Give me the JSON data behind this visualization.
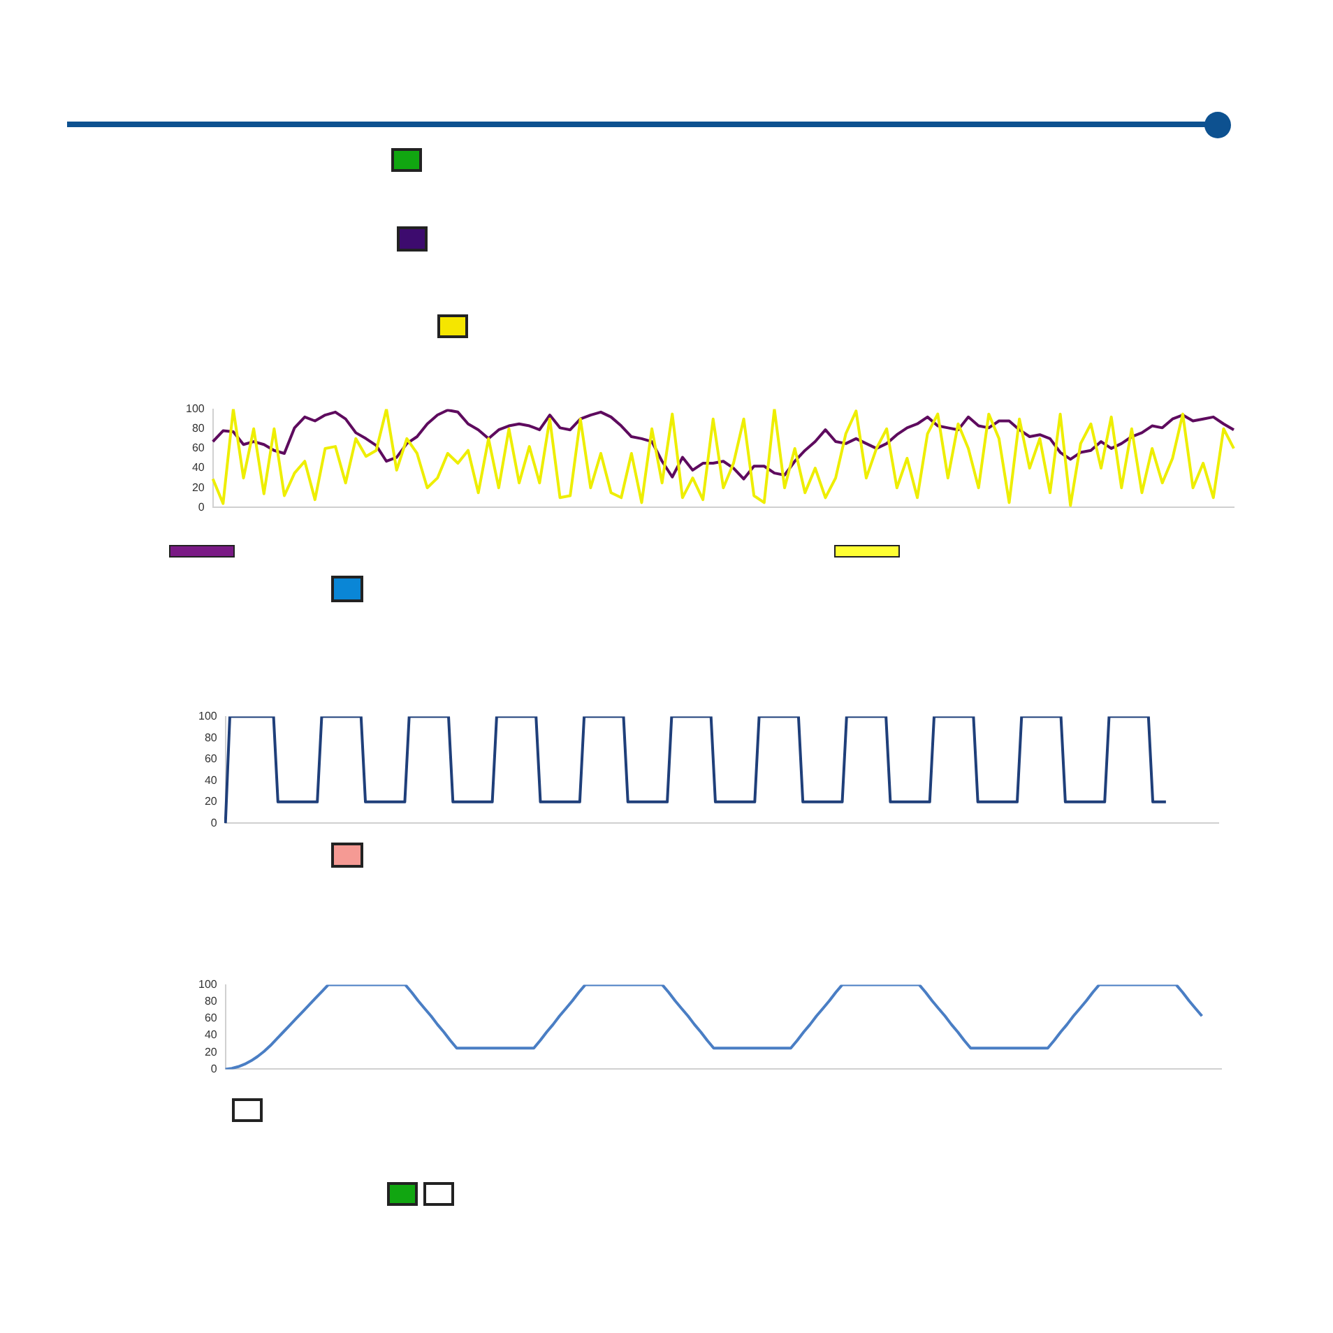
{
  "chart_data": [
    {
      "type": "line",
      "categories": [
        null,
        null,
        null,
        null,
        null,
        null,
        null,
        null,
        null,
        null,
        null,
        null,
        null,
        null,
        null,
        null,
        null,
        null,
        null,
        null,
        null,
        null,
        null,
        null,
        null,
        null,
        null,
        null,
        null,
        null,
        null,
        null,
        null,
        null,
        null,
        null,
        null,
        null,
        null,
        null,
        null,
        null,
        null,
        null,
        null,
        null,
        null,
        null,
        null,
        null,
        null,
        null,
        null,
        null,
        null,
        null,
        null,
        null,
        null,
        null,
        null,
        null,
        null,
        null,
        null,
        null,
        null,
        null,
        null,
        null,
        null,
        null,
        null,
        null,
        null,
        null,
        null,
        null,
        null,
        null,
        null,
        null,
        null,
        null,
        null,
        null,
        null,
        null,
        null,
        null,
        null,
        null,
        null,
        null,
        null,
        null,
        null,
        null,
        null,
        null,
        null
      ],
      "series": [
        {
          "color": "#eeee00",
          "values": [
            29,
            4,
            100,
            30,
            80,
            14,
            80,
            12,
            35,
            47,
            8,
            60,
            62,
            25,
            70,
            52,
            58,
            100,
            38,
            70,
            55,
            20,
            30,
            55,
            45,
            58,
            15,
            70,
            20,
            80,
            25,
            62,
            25,
            90,
            10,
            12,
            90,
            20,
            55,
            15,
            10,
            55,
            5,
            80,
            25,
            95,
            10,
            30,
            8,
            90,
            20,
            45,
            90,
            12,
            5,
            100,
            20,
            60,
            15,
            40,
            10,
            30,
            75,
            98,
            30,
            60,
            80,
            20,
            50,
            10,
            75,
            95,
            30,
            85,
            60,
            20,
            95,
            70,
            5,
            90,
            40,
            70,
            15,
            95,
            2,
            65,
            85,
            40,
            92,
            20,
            80,
            15,
            60,
            25,
            50,
            95,
            20,
            45,
            10,
            80,
            60
          ]
        },
        {
          "color": "#5e0b5e",
          "values": [
            67,
            78,
            77,
            64,
            67,
            64,
            58,
            55,
            81,
            92,
            88,
            94,
            97,
            90,
            76,
            70,
            63,
            47,
            51,
            65,
            72,
            85,
            94,
            99,
            97,
            85,
            79,
            70,
            79,
            83,
            85,
            83,
            79,
            94,
            81,
            79,
            90,
            94,
            97,
            92,
            83,
            72,
            70,
            67,
            47,
            31,
            51,
            38,
            45,
            45,
            47,
            40,
            29,
            42,
            42,
            35,
            33,
            47,
            58,
            67,
            79,
            67,
            65,
            70,
            65,
            60,
            65,
            74,
            81,
            85,
            92,
            83,
            81,
            79,
            92,
            83,
            81,
            88,
            88,
            79,
            72,
            74,
            70,
            56,
            49,
            56,
            58,
            67,
            60,
            65,
            72,
            76,
            83,
            81,
            90,
            94,
            88,
            90,
            92,
            85,
            79
          ]
        }
      ],
      "ylim": [
        0,
        100
      ],
      "yticks": [
        0,
        20,
        40,
        60,
        80,
        100
      ],
      "tick_labels": "y",
      "marker": "none"
    },
    {
      "type": "line",
      "categories": [
        null,
        null,
        null,
        null,
        null,
        null,
        null,
        null,
        null,
        null,
        null,
        null,
        null,
        null,
        null,
        null,
        null,
        null,
        null,
        null,
        null,
        null,
        null,
        null,
        null,
        null,
        null,
        null,
        null,
        null,
        null,
        null,
        null,
        null,
        null,
        null,
        null,
        null,
        null,
        null,
        null,
        null,
        null,
        null,
        null,
        null,
        null,
        null,
        null,
        null,
        null,
        null,
        null,
        null,
        null,
        null,
        null,
        null,
        null,
        null,
        null,
        null,
        null,
        null,
        null,
        null,
        null,
        null,
        null,
        null,
        null,
        null,
        null,
        null,
        null,
        null,
        null,
        null,
        null,
        null,
        null,
        null,
        null,
        null,
        null,
        null,
        null,
        null,
        null,
        null,
        null,
        null,
        null,
        null,
        null,
        null,
        null,
        null,
        null,
        null,
        null,
        null,
        null,
        null,
        null,
        null,
        null,
        null,
        null,
        null,
        null,
        null,
        null,
        null,
        null,
        null,
        null,
        null,
        null,
        null,
        null,
        null,
        null,
        null,
        null,
        null,
        null,
        null,
        null,
        null,
        null,
        null,
        null,
        null,
        null,
        null,
        null,
        null,
        null,
        null,
        null,
        null,
        null,
        null,
        null,
        null,
        null,
        null,
        null,
        null,
        null,
        null,
        null,
        null,
        null,
        null,
        null,
        null,
        null,
        null,
        null,
        null,
        null,
        null,
        null,
        null,
        null,
        null,
        null,
        null,
        null,
        null,
        null,
        null,
        null,
        null,
        null,
        null,
        null,
        null,
        null,
        null,
        null,
        null,
        null,
        null,
        null,
        null,
        null,
        null,
        null,
        null,
        null,
        null,
        null,
        null,
        null,
        null,
        null,
        null,
        null,
        null,
        null,
        null,
        null,
        null,
        null,
        null,
        null,
        null,
        null,
        null,
        null,
        null,
        null,
        null,
        null,
        null,
        null,
        null,
        null,
        null,
        null,
        null,
        null,
        null,
        null,
        null
      ],
      "series": [
        {
          "color": "#1f3f7a",
          "values": [
            0,
            100,
            100,
            100,
            100,
            100,
            100,
            100,
            100,
            100,
            100,
            100,
            20,
            20,
            20,
            20,
            20,
            20,
            20,
            20,
            20,
            20,
            100,
            100,
            100,
            100,
            100,
            100,
            100,
            100,
            100,
            100,
            20,
            20,
            20,
            20,
            20,
            20,
            20,
            20,
            20,
            20,
            100,
            100,
            100,
            100,
            100,
            100,
            100,
            100,
            100,
            100,
            20,
            20,
            20,
            20,
            20,
            20,
            20,
            20,
            20,
            20,
            100,
            100,
            100,
            100,
            100,
            100,
            100,
            100,
            100,
            100,
            20,
            20,
            20,
            20,
            20,
            20,
            20,
            20,
            20,
            20,
            100,
            100,
            100,
            100,
            100,
            100,
            100,
            100,
            100,
            100,
            20,
            20,
            20,
            20,
            20,
            20,
            20,
            20,
            20,
            20,
            100,
            100,
            100,
            100,
            100,
            100,
            100,
            100,
            100,
            100,
            20,
            20,
            20,
            20,
            20,
            20,
            20,
            20,
            20,
            20,
            100,
            100,
            100,
            100,
            100,
            100,
            100,
            100,
            100,
            100,
            20,
            20,
            20,
            20,
            20,
            20,
            20,
            20,
            20,
            20,
            100,
            100,
            100,
            100,
            100,
            100,
            100,
            100,
            100,
            100,
            20,
            20,
            20,
            20,
            20,
            20,
            20,
            20,
            20,
            20,
            100,
            100,
            100,
            100,
            100,
            100,
            100,
            100,
            100,
            100,
            20,
            20,
            20,
            20,
            20,
            20,
            20,
            20,
            20,
            20,
            100,
            100,
            100,
            100,
            100,
            100,
            100,
            100,
            100,
            100,
            20,
            20,
            20,
            20,
            20,
            20,
            20,
            20,
            20,
            20,
            100,
            100,
            100,
            100,
            100,
            100,
            100,
            100,
            100,
            100,
            20,
            20,
            20,
            20,
            null,
            null,
            null,
            null,
            null,
            null,
            null,
            null,
            null,
            null,
            null,
            null
          ]
        }
      ],
      "ylim": [
        0,
        100
      ],
      "yticks": [
        0,
        20,
        40,
        60,
        80,
        100
      ],
      "tick_labels": "y",
      "marker": "none"
    },
    {
      "type": "line",
      "categories": [
        null,
        null,
        null,
        null,
        null,
        null,
        null,
        null,
        null,
        null,
        null,
        null,
        null,
        null,
        null,
        null,
        null,
        null,
        null,
        null,
        null,
        null,
        null,
        null,
        null,
        null,
        null,
        null,
        null,
        null,
        null,
        null,
        null,
        null,
        null,
        null,
        null,
        null,
        null,
        null,
        null,
        null,
        null,
        null,
        null,
        null,
        null,
        null,
        null,
        null,
        null,
        null,
        null,
        null,
        null,
        null,
        null,
        null,
        null,
        null,
        null,
        null,
        null,
        null,
        null,
        null,
        null,
        null,
        null,
        null,
        null,
        null,
        null,
        null,
        null,
        null,
        null,
        null,
        null,
        null,
        null,
        null,
        null,
        null,
        null,
        null,
        null,
        null,
        null,
        null,
        null,
        null,
        null,
        null,
        null,
        null,
        null,
        null,
        null,
        null,
        null,
        null,
        null,
        null,
        null,
        null,
        null,
        null,
        null,
        null,
        null,
        null,
        null,
        null,
        null,
        null,
        null,
        null,
        null,
        null,
        null,
        null,
        null,
        null,
        null,
        null,
        null,
        null,
        null,
        null,
        null,
        null,
        null,
        null,
        null,
        null,
        null,
        null,
        null,
        null,
        null,
        null,
        null,
        null,
        null,
        null,
        null,
        null,
        null,
        null,
        null,
        null,
        null,
        null,
        null,
        null
      ],
      "series": [
        {
          "color": "#4a7ec4",
          "values": [
            0,
            1,
            3,
            6,
            10,
            15,
            21,
            28,
            36,
            44,
            52,
            60,
            68,
            76,
            84,
            92,
            100,
            100,
            100,
            100,
            100,
            100,
            100,
            100,
            100,
            100,
            100,
            100,
            100,
            91,
            81,
            72,
            63,
            53,
            44,
            34,
            25,
            25,
            25,
            25,
            25,
            25,
            25,
            25,
            25,
            25,
            25,
            25,
            25,
            34,
            44,
            53,
            63,
            72,
            81,
            91,
            100,
            100,
            100,
            100,
            100,
            100,
            100,
            100,
            100,
            100,
            100,
            100,
            100,
            91,
            81,
            72,
            63,
            53,
            44,
            34,
            25,
            25,
            25,
            25,
            25,
            25,
            25,
            25,
            25,
            25,
            25,
            25,
            25,
            34,
            44,
            53,
            63,
            72,
            81,
            91,
            100,
            100,
            100,
            100,
            100,
            100,
            100,
            100,
            100,
            100,
            100,
            100,
            100,
            91,
            81,
            72,
            63,
            53,
            44,
            34,
            25,
            25,
            25,
            25,
            25,
            25,
            25,
            25,
            25,
            25,
            25,
            25,
            25,
            34,
            44,
            53,
            63,
            72,
            81,
            91,
            100,
            100,
            100,
            100,
            100,
            100,
            100,
            100,
            100,
            100,
            100,
            100,
            100,
            91,
            81,
            72,
            63,
            null,
            null,
            null
          ]
        }
      ],
      "ylim": [
        0,
        100
      ],
      "yticks": [
        0,
        20,
        40,
        60,
        80,
        100
      ],
      "tick_labels": "y",
      "marker": "none"
    }
  ]
}
